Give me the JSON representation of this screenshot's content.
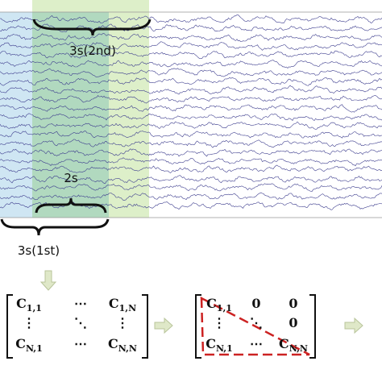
{
  "windows": {
    "second": "3s(2nd)",
    "overlap": "2s",
    "first": "3s(1st)"
  },
  "matrix_full": {
    "rows": [
      [
        {
          "base": "C",
          "sub": "1,1"
        },
        "⋯",
        {
          "base": "C",
          "sub": "1,N"
        }
      ],
      [
        "⋮",
        "⋱",
        "⋮"
      ],
      [
        {
          "base": "C",
          "sub": "N,1"
        },
        "⋯",
        {
          "base": "C",
          "sub": "N,N"
        }
      ]
    ]
  },
  "matrix_lower": {
    "rows": [
      [
        {
          "base": "C",
          "sub": "1,1"
        },
        "0",
        "0"
      ],
      [
        "⋮",
        "⋱",
        "0"
      ],
      [
        {
          "base": "C",
          "sub": "N,1"
        },
        "⋯",
        {
          "base": "C",
          "sub": "N,N"
        }
      ]
    ]
  }
}
